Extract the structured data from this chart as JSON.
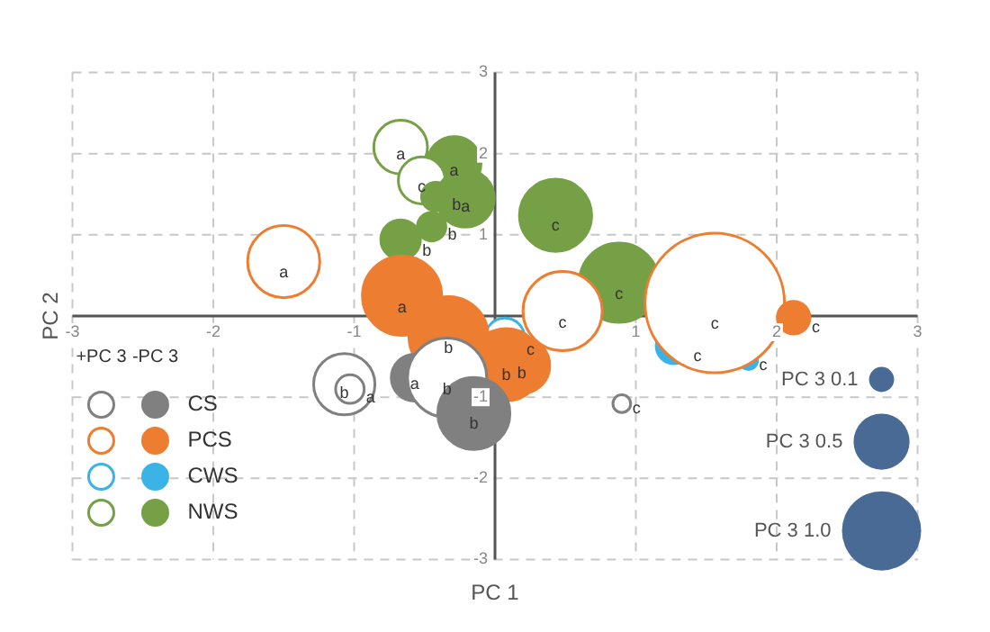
{
  "chart_data": {
    "type": "bubble",
    "xlabel": "PC 1",
    "ylabel": "PC 2",
    "xlim": [
      -3,
      3
    ],
    "ylim": [
      -3,
      3
    ],
    "xticks": [
      -3,
      -2,
      -1,
      {
        "value": 0,
        "label": null
      },
      1,
      2,
      3
    ],
    "yticks": [
      -3,
      -2,
      -1,
      {
        "value": 0,
        "label": null
      },
      1,
      2,
      3
    ],
    "grid": true,
    "legend": "bottom left",
    "annotations": [
      "+PC 3",
      "-PC 3"
    ],
    "size_legend": [
      {
        "value": 0.1,
        "label": "PC 3 0.1"
      },
      {
        "value": 0.5,
        "label": "PC 3 0.5"
      },
      {
        "value": 1.0,
        "label": "PC 3 1.0"
      }
    ],
    "series": [
      {
        "name": "CS",
        "color": "#808080",
        "x": [
          -1.07,
          -1.03,
          -0.57,
          -0.34,
          -0.15,
          0.9
        ],
        "values": [
          -0.84,
          -0.9,
          -0.76,
          -0.76,
          -1.2,
          -1.08
        ],
        "sizes": [
          0.6,
          0.13,
          0.35,
          1.0,
          0.83,
          0.05
        ],
        "colors": [
          "#ffffff",
          "#ffffff",
          "#808080",
          "#ffffff",
          "#808080",
          "#ffffff"
        ],
        "value_labels": [
          "b",
          "a",
          "a",
          "b",
          "b",
          "c"
        ]
      },
      {
        "name": "PCS",
        "color": "#ed7d31",
        "x": [
          -1.5,
          -0.66,
          -0.33,
          0.08,
          0.19,
          0.48,
          1.56,
          2.12
        ],
        "values": [
          0.67,
          0.25,
          -0.25,
          -0.6,
          -0.61,
          0.06,
          0.16,
          -0.02
        ],
        "sizes": [
          0.83,
          1.0,
          1.0,
          0.83,
          0.5,
          1.0,
          3.1,
          0.17
        ],
        "colors": [
          "#ffffff",
          "#ed7d31",
          "#ed7d31",
          "#ed7d31",
          "#ed7d31",
          "#ffffff",
          "#ffffff",
          "#ed7d31"
        ],
        "value_labels": [
          "a",
          "a",
          "b",
          "b",
          "b",
          "c",
          "c",
          "c"
        ]
      },
      {
        "name": "CWS",
        "color": "#3bb3e6",
        "x": [
          0.07,
          1.27,
          1.8
        ],
        "values": [
          -0.27,
          -0.37,
          -0.55
        ],
        "sizes": [
          0.25,
          0.2,
          0.05
        ],
        "colors": [
          "#ffffff",
          "#3bb3e6",
          "#3bb3e6"
        ],
        "value_labels": [
          "c",
          "c",
          "c"
        ]
      },
      {
        "name": "NWS",
        "color": "#76a046",
        "x": [
          -0.67,
          -0.29,
          -0.52,
          -0.42,
          -0.21,
          -0.45,
          -0.67,
          0.43,
          0.88
        ],
        "values": [
          2.08,
          1.88,
          1.67,
          1.47,
          1.45,
          1.1,
          0.94,
          1.24,
          0.41
        ],
        "sizes": [
          0.46,
          0.46,
          0.35,
          0.13,
          0.53,
          0.13,
          0.25,
          0.83,
          1.0
        ],
        "colors": [
          "#ffffff",
          "#76a046",
          "#ffffff",
          "#76a046",
          "#76a046",
          "#76a046",
          "#76a046",
          "#76a046",
          "#76a046"
        ],
        "value_labels": [
          "a",
          "a",
          "c",
          "b",
          "a",
          "b",
          "b",
          "c",
          "c"
        ]
      }
    ]
  }
}
